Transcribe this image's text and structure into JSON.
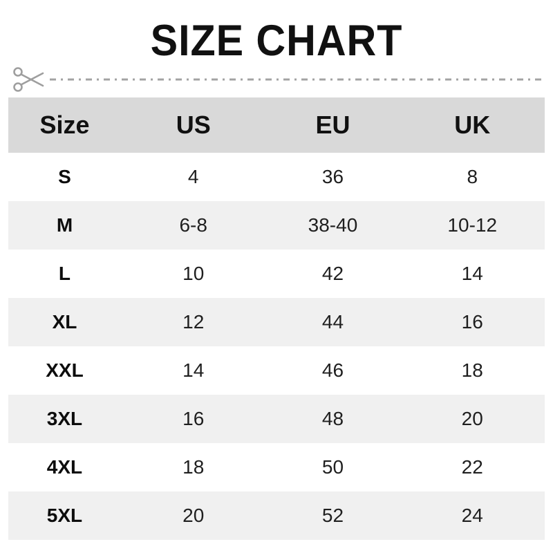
{
  "title": "SIZE CHART",
  "cut_line": {
    "icon": "scissors-icon",
    "color": "#9e9e9e"
  },
  "colors": {
    "header_bg": "#d9d9d9",
    "alt_row_bg": "#f0f0f0",
    "text": "#111111"
  },
  "chart_data": {
    "type": "table",
    "title": "SIZE CHART",
    "columns": [
      "Size",
      "US",
      "EU",
      "UK"
    ],
    "rows": [
      [
        "S",
        "4",
        "36",
        "8"
      ],
      [
        "M",
        "6-8",
        "38-40",
        "10-12"
      ],
      [
        "L",
        "10",
        "42",
        "14"
      ],
      [
        "XL",
        "12",
        "44",
        "16"
      ],
      [
        "XXL",
        "14",
        "46",
        "18"
      ],
      [
        "3XL",
        "16",
        "48",
        "20"
      ],
      [
        "4XL",
        "18",
        "50",
        "22"
      ],
      [
        "5XL",
        "20",
        "52",
        "24"
      ]
    ]
  }
}
